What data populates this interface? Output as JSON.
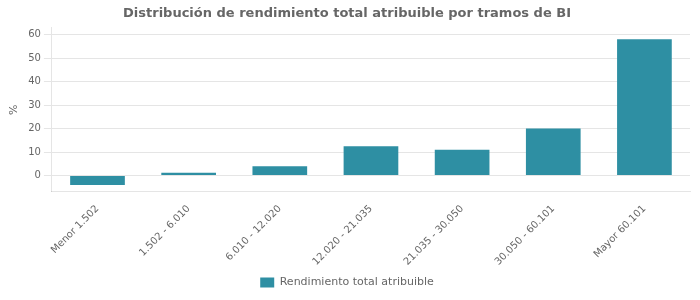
{
  "chart_data": {
    "type": "bar",
    "title": "Distribución de rendimiento total atribuible por tramos de BI",
    "categories": [
      "Menor 1.502",
      "1.502 - 6.010",
      "6.010 - 12.020",
      "12.020 - 21.035",
      "21.035 - 30.050",
      "30.050 - 60.101",
      "Mayor 60.101"
    ],
    "series": [
      {
        "name": "Rendimiento total atribuible",
        "color": "#2e8fa3",
        "values": [
          -4.0,
          1.2,
          4.0,
          12.5,
          11.0,
          20.0,
          58.0
        ]
      }
    ],
    "ylabel": "%",
    "ylim": [
      -7,
      63
    ],
    "yticks": [
      0,
      10,
      20,
      30,
      40,
      50,
      60
    ],
    "grid": true,
    "legend": "bottom"
  }
}
